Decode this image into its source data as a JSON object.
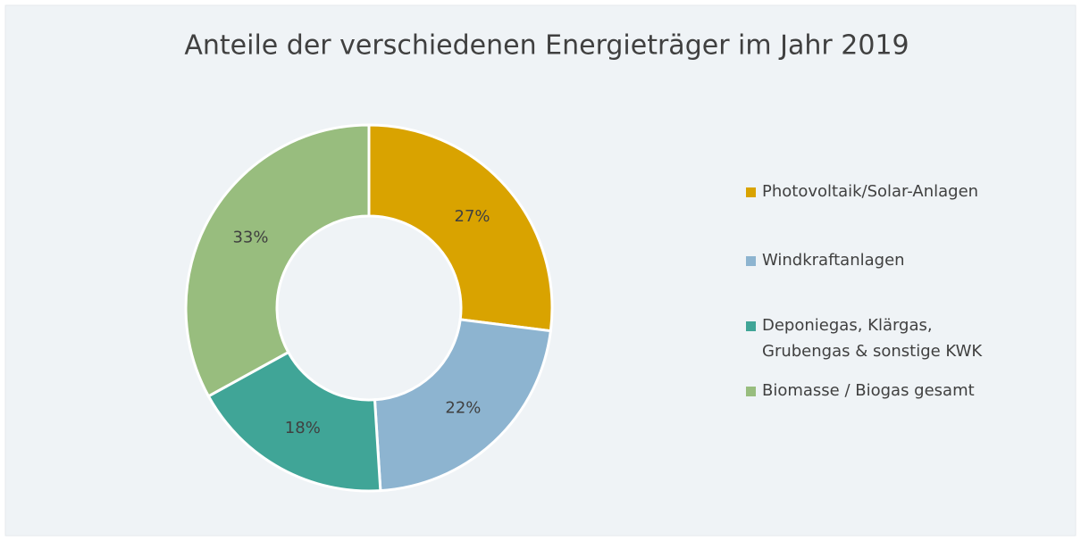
{
  "chart_data": {
    "type": "donut",
    "title": "Anteile der verschiedenen Energieträger im Jahr 2019",
    "categories": [
      "Photovoltaik/Solar-Anlagen",
      "Windkraftanlagen",
      "Deponiegas, Klärgas, Grubengas & sonstige KWK",
      "Biomasse / Biogas gesamt"
    ],
    "values": [
      27,
      22,
      18,
      33
    ],
    "value_labels": [
      "27%",
      "22%",
      "18%",
      "33%"
    ],
    "colors": [
      "#d9a300",
      "#8db4d0",
      "#40a597",
      "#98bd7e"
    ],
    "legend": "right"
  }
}
